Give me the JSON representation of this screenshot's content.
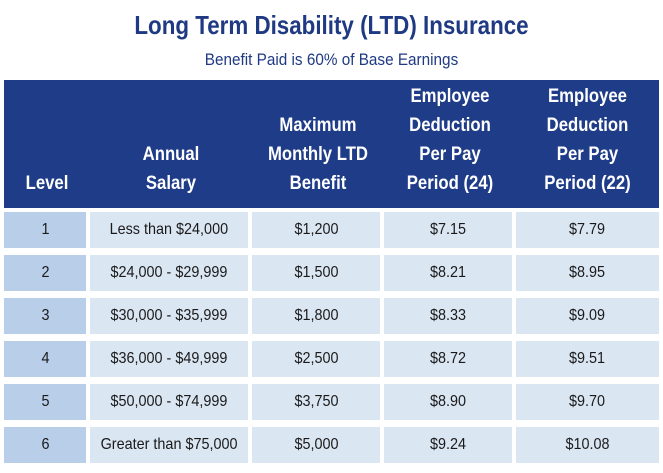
{
  "title": "Long Term Disability (LTD) Insurance",
  "subtitle": "Benefit Paid is 60% of Base Earnings",
  "colors": {
    "header_bg": "#1f3c88",
    "title_text": "#1f3a82",
    "level_cell_bg": "#b9cfe9",
    "data_cell_bg": "#dbe6f3"
  },
  "table": {
    "headers": [
      "Level",
      "Annual\nSalary",
      "Maximum\nMonthly LTD\nBenefit",
      "Employee\nDeduction\nPer Pay\nPeriod (24)",
      "Employee\nDeduction\nPer Pay\nPeriod (22)"
    ],
    "rows": [
      [
        "1",
        "Less than $24,000",
        "$1,200",
        "$7.15",
        "$7.79"
      ],
      [
        "2",
        "$24,000 - $29,999",
        "$1,500",
        "$8.21",
        "$8.95"
      ],
      [
        "3",
        "$30,000 - $35,999",
        "$1,800",
        "$8.33",
        "$9.09"
      ],
      [
        "4",
        "$36,000 - $49,999",
        "$2,500",
        "$8.72",
        "$9.51"
      ],
      [
        "5",
        "$50,000 - $74,999",
        "$3,750",
        "$8.90",
        "$9.70"
      ],
      [
        "6",
        "Greater than $75,000",
        "$5,000",
        "$9.24",
        "$10.08"
      ]
    ]
  }
}
